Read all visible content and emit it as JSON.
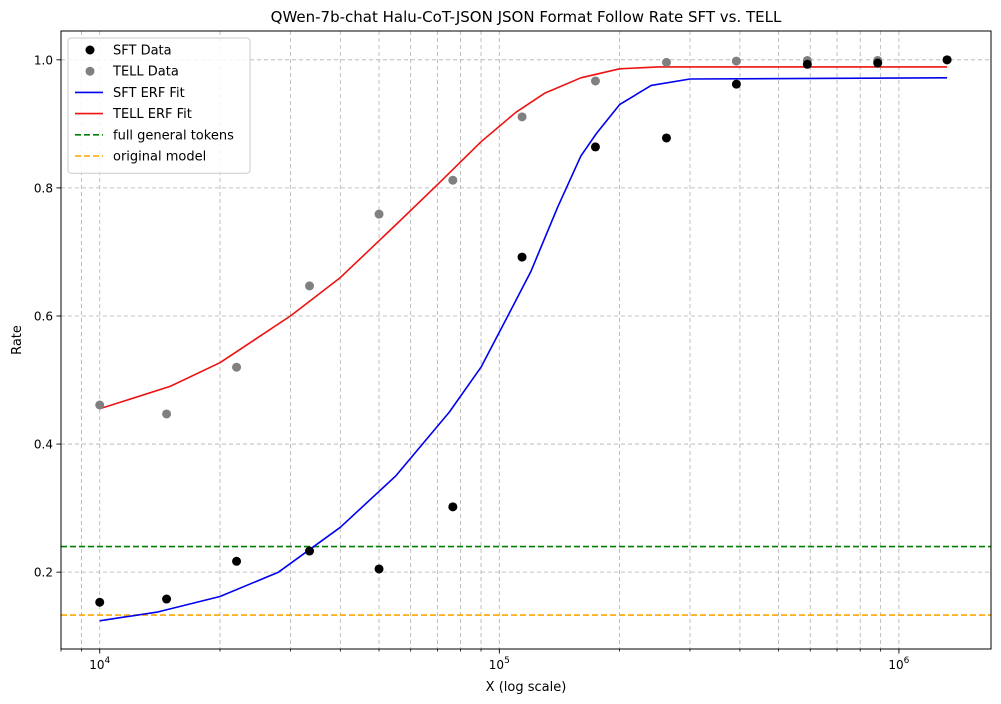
{
  "chart_data": {
    "type": "scatter",
    "title": "QWen-7b-chat Halu-CoT-JSON JSON Format Follow Rate SFT vs. TELL",
    "xlabel": "X (log scale)",
    "ylabel": "Rate",
    "xscale": "log",
    "xlim": [
      8000,
      1700000
    ],
    "ylim": [
      0.08,
      1.045
    ],
    "grid": true,
    "legend_position": "top-left",
    "x_ticks": [
      {
        "value": 10000,
        "base": "10",
        "exp": "4"
      },
      {
        "value": 100000,
        "base": "10",
        "exp": "5"
      },
      {
        "value": 1000000,
        "base": "10",
        "exp": "6"
      }
    ],
    "y_ticks": [
      {
        "value": 0.2,
        "label": "0.2"
      },
      {
        "value": 0.4,
        "label": "0.4"
      },
      {
        "value": 0.6,
        "label": "0.6"
      },
      {
        "value": 0.8,
        "label": "0.8"
      },
      {
        "value": 1.0,
        "label": "1.0"
      }
    ],
    "scatter_series": [
      {
        "name": "SFT Data",
        "color": "#000000",
        "x": [
          10000,
          14700,
          22000,
          33500,
          50000,
          76500,
          114000,
          174000,
          262000,
          392000,
          590000,
          885000,
          1320000
        ],
        "y": [
          0.153,
          0.158,
          0.217,
          0.233,
          0.205,
          0.302,
          0.692,
          0.864,
          0.878,
          0.962,
          0.993,
          0.995,
          1.0
        ]
      },
      {
        "name": "TELL Data",
        "color": "#808080",
        "x": [
          10000,
          14700,
          22000,
          33500,
          50000,
          76500,
          114000,
          174000,
          262000,
          392000,
          590000,
          885000,
          1320000
        ],
        "y": [
          0.461,
          0.447,
          0.52,
          0.647,
          0.759,
          0.812,
          0.911,
          0.967,
          0.996,
          0.998,
          0.999,
          0.999,
          1.0
        ]
      }
    ],
    "fit_series": [
      {
        "name": "SFT ERF Fit",
        "color": "#0000ee",
        "x": [
          10000,
          14000,
          20000,
          28000,
          40000,
          55000,
          75000,
          90000,
          105000,
          120000,
          140000,
          160000,
          175000,
          200000,
          240000,
          300000,
          1320000
        ],
        "y": [
          0.124,
          0.138,
          0.162,
          0.2,
          0.27,
          0.35,
          0.45,
          0.52,
          0.6,
          0.67,
          0.77,
          0.85,
          0.885,
          0.93,
          0.96,
          0.97,
          0.972
        ]
      },
      {
        "name": "TELL ERF Fit",
        "color": "#ee1111",
        "x": [
          10000,
          15000,
          20000,
          30000,
          40000,
          55000,
          70000,
          90000,
          110000,
          130000,
          160000,
          200000,
          250000,
          1320000
        ],
        "y": [
          0.455,
          0.49,
          0.527,
          0.6,
          0.66,
          0.742,
          0.805,
          0.872,
          0.918,
          0.948,
          0.972,
          0.986,
          0.989,
          0.989
        ]
      }
    ],
    "reference_lines": [
      {
        "name": "full general tokens",
        "y": 0.24,
        "color": "#008000"
      },
      {
        "name": "original model",
        "y": 0.133,
        "color": "#ffa500"
      }
    ]
  }
}
